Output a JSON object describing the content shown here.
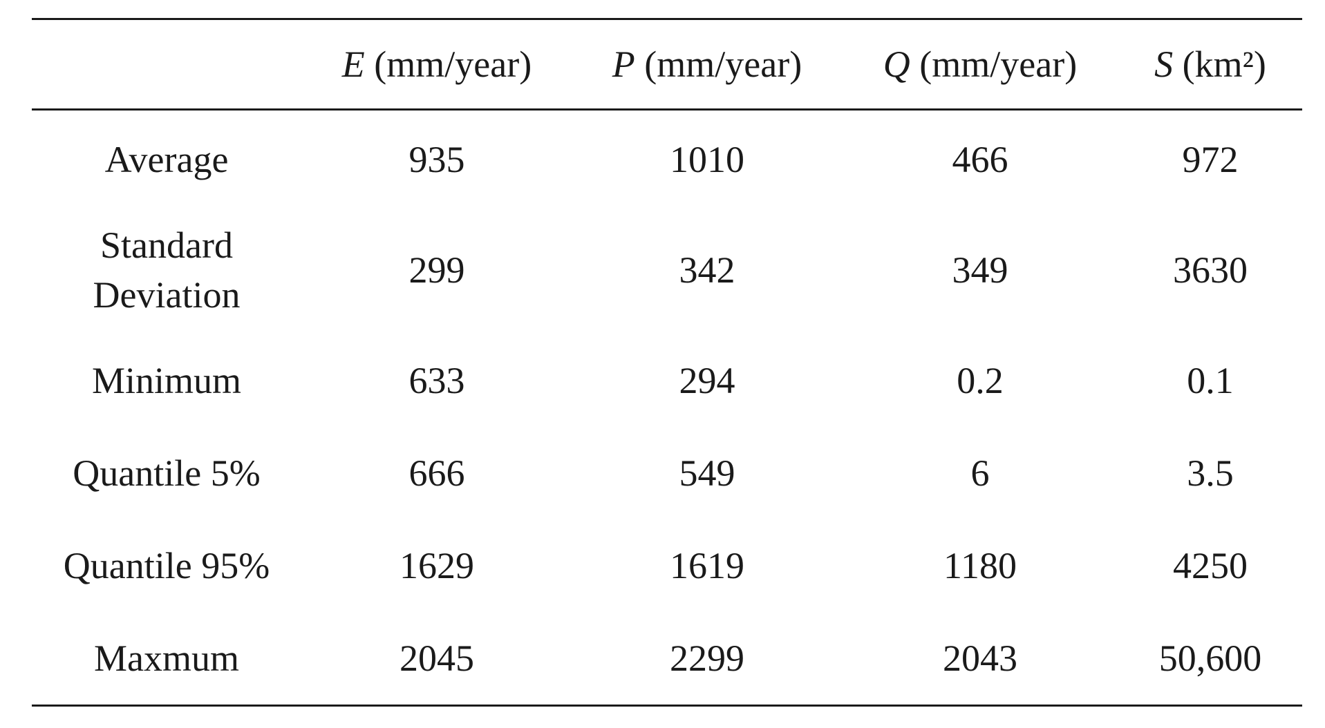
{
  "table": {
    "columns": [
      {
        "symbol": "",
        "unit": ""
      },
      {
        "symbol": "E",
        "unit": " (mm/year)"
      },
      {
        "symbol": "P",
        "unit": " (mm/year)"
      },
      {
        "symbol": "Q",
        "unit": " (mm/year)"
      },
      {
        "symbol": "S",
        "unit": " (km²)"
      }
    ],
    "rows": [
      {
        "label": "Average",
        "values": [
          "935",
          "1010",
          "466",
          "972"
        ]
      },
      {
        "label": "Standard\nDeviation",
        "values": [
          "299",
          "342",
          "349",
          "3630"
        ]
      },
      {
        "label": "Minimum",
        "values": [
          "633",
          "294",
          "0.2",
          "0.1"
        ]
      },
      {
        "label": "Quantile 5%",
        "values": [
          "666",
          "549",
          "6",
          "3.5"
        ]
      },
      {
        "label": "Quantile 95%",
        "values": [
          "1629",
          "1619",
          "1180",
          "4250"
        ]
      },
      {
        "label": "Maxmum",
        "values": [
          "2045",
          "2299",
          "2043",
          "50,600"
        ]
      }
    ]
  }
}
